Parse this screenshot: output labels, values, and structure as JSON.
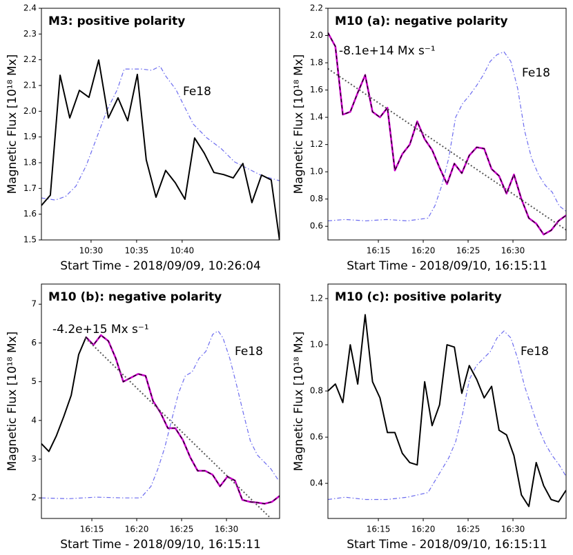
{
  "chart_data": [
    {
      "type": "line",
      "title": "M3: positive polarity",
      "ylabel": "Magnetic Flux [10¹⁸ Mx]",
      "xlabel": "Start Time - 2018/09/09, 10:26:04",
      "xlim": [
        624.55,
        650.7
      ],
      "xticks": [
        {
          "value": 630,
          "label": "10:30"
        },
        {
          "value": 635,
          "label": "10:35"
        },
        {
          "value": 640,
          "label": "10:40"
        }
      ],
      "ylim": [
        1.5,
        2.4
      ],
      "yticks": [
        1.5,
        1.6,
        1.7,
        1.8,
        1.9,
        {
          "value": 2,
          "label": "2.0"
        },
        2.1,
        2.2,
        2.3,
        2.4
      ],
      "series": [
        {
          "name": "Fe18",
          "color": "#6b6bef",
          "style": "dashdot",
          "x": [
            624.55,
            626.07,
            627.2,
            628.34,
            629.47,
            630.61,
            631.75,
            632.88,
            633.64,
            634.4,
            635.53,
            636.67,
            637.58,
            638.19,
            639.32,
            640.08,
            641.22,
            642.73,
            644.25,
            645.76,
            647.27,
            648.79,
            650.69
          ],
          "values": [
            1.663,
            1.655,
            1.669,
            1.709,
            1.789,
            1.896,
            2.004,
            2.084,
            2.164,
            2.164,
            2.164,
            2.159,
            2.175,
            2.137,
            2.084,
            2.03,
            1.95,
            1.896,
            1.856,
            1.803,
            1.776,
            1.749,
            1.73
          ]
        },
        {
          "color": "#000000",
          "style": "solid",
          "x": [
            624.55,
            625.53,
            626.6,
            627.66,
            628.72,
            629.77,
            630.84,
            631.9,
            632.96,
            634.02,
            635.08,
            636.06,
            637.13,
            638.19,
            639.25,
            640.31,
            641.37,
            642.43,
            643.49,
            644.55,
            645.61,
            646.67,
            647.66,
            648.72,
            649.78,
            650.69
          ],
          "values": [
            1.634,
            1.674,
            2.14,
            1.974,
            2.081,
            2.054,
            2.199,
            1.974,
            2.052,
            1.963,
            2.143,
            1.811,
            1.666,
            1.77,
            1.722,
            1.658,
            1.896,
            1.837,
            1.762,
            1.754,
            1.741,
            1.797,
            1.645,
            1.752,
            1.733,
            1.5
          ]
        }
      ]
    },
    {
      "type": "line",
      "title": "M10 (a): negative polarity",
      "ylabel": "Magnetic Flux [10¹⁸ Mx]",
      "xlabel": "Start Time - 2018/09/10, 16:15:11",
      "annotation": "-8.1e+14 Mx s⁻¹",
      "xlim": [
        969.38,
        995.92
      ],
      "xticks": [
        {
          "value": 975,
          "label": "16:15"
        },
        {
          "value": 980,
          "label": "16:20"
        },
        {
          "value": 985,
          "label": "16:25"
        },
        {
          "value": 990,
          "label": "16:30"
        }
      ],
      "ylim": [
        0.5,
        2.2
      ],
      "yticks": [
        0.6,
        0.8,
        {
          "value": 1,
          "label": "1.0"
        },
        1.2,
        1.4,
        1.6,
        1.8,
        {
          "value": 2,
          "label": "2.0"
        },
        2.2
      ],
      "series": [
        {
          "name": "Fe18",
          "color": "#6b6bef",
          "style": "dashdot",
          "x": [
            969.38,
            971.3,
            973.61,
            975.92,
            978.23,
            980.53,
            981.3,
            982.07,
            982.84,
            983.61,
            984.38,
            985.15,
            985.92,
            986.69,
            987.46,
            988.23,
            989.0,
            989.76,
            990.53,
            991.3,
            992.07,
            992.84,
            993.61,
            994.38,
            995.15,
            995.92
          ],
          "values": [
            0.64,
            0.65,
            0.64,
            0.65,
            0.64,
            0.66,
            0.75,
            0.9,
            1.1,
            1.4,
            1.5,
            1.56,
            1.63,
            1.71,
            1.81,
            1.86,
            1.88,
            1.81,
            1.61,
            1.3,
            1.1,
            0.98,
            0.9,
            0.85,
            0.75,
            0.71
          ]
        },
        {
          "color": "#000000",
          "style": "solid",
          "x": [
            969.38,
            970.21,
            971.04,
            971.87,
            972.7,
            973.53,
            974.35,
            975.18,
            976.01,
            976.84,
            977.67,
            978.5,
            979.33,
            980.16,
            980.99,
            981.82,
            982.65,
            983.47,
            984.3,
            985.13,
            985.96,
            986.79,
            987.62,
            988.45,
            989.28,
            990.11,
            990.94,
            991.77,
            992.59,
            993.42,
            994.25,
            995.08,
            995.91
          ],
          "values": [
            2.02,
            1.92,
            1.42,
            1.44,
            1.58,
            1.71,
            1.44,
            1.4,
            1.47,
            1.01,
            1.13,
            1.2,
            1.37,
            1.24,
            1.16,
            1.03,
            0.91,
            1.06,
            0.99,
            1.12,
            1.18,
            1.17,
            1.02,
            0.97,
            0.84,
            0.98,
            0.8,
            0.66,
            0.62,
            0.54,
            0.57,
            0.64,
            0.68
          ]
        },
        {
          "color": "#cc00cc",
          "style": "highlight",
          "x": [
            969.38,
            970.21,
            971.04,
            971.87,
            972.7,
            973.53,
            974.35,
            975.18,
            976.01,
            976.84,
            977.67,
            978.5,
            979.33,
            980.16,
            980.99,
            981.82,
            982.65,
            983.47,
            984.3,
            985.13,
            985.96,
            986.79,
            987.62,
            988.45,
            989.28,
            990.11,
            990.94,
            991.77,
            992.59,
            993.42,
            994.25,
            995.08,
            995.91
          ],
          "values": [
            2.02,
            1.92,
            1.42,
            1.44,
            1.58,
            1.71,
            1.44,
            1.4,
            1.47,
            1.01,
            1.13,
            1.2,
            1.37,
            1.24,
            1.16,
            1.03,
            0.91,
            1.06,
            0.99,
            1.12,
            1.18,
            1.17,
            1.02,
            0.97,
            0.84,
            0.98,
            0.8,
            0.66,
            0.62,
            0.54,
            0.57,
            0.64,
            0.68
          ]
        },
        {
          "color": "#555555",
          "style": "dotted",
          "x": [
            969.38,
            995.91
          ],
          "values": [
            1.757,
            0.574
          ]
        }
      ]
    },
    {
      "type": "line",
      "title": "M10 (b): negative polarity",
      "ylabel": "Magnetic Flux [10¹⁸ Mx]",
      "xlabel": "Start Time - 2018/09/10, 16:15:11",
      "annotation": "-4.2e+15 Mx s⁻¹",
      "xlim": [
        969.38,
        995.92
      ],
      "xticks": [
        {
          "value": 975,
          "label": "16:15"
        },
        {
          "value": 980,
          "label": "16:20"
        },
        {
          "value": 985,
          "label": "16:25"
        },
        {
          "value": 990,
          "label": "16:30"
        }
      ],
      "ylim": [
        1.47,
        7.52
      ],
      "yticks": [
        2,
        3,
        4,
        5,
        6,
        7
      ],
      "series": [
        {
          "name": "Fe18",
          "color": "#6b6bef",
          "style": "dashdot",
          "x": [
            969.38,
            972.43,
            975.49,
            978.54,
            980.45,
            981.59,
            982.36,
            983.12,
            983.88,
            984.65,
            985.41,
            986.17,
            986.94,
            987.7,
            988.46,
            989.07,
            989.61,
            990.37,
            991.14,
            991.9,
            992.66,
            993.43,
            994.19,
            994.95,
            995.72
          ],
          "values": [
            2.0,
            1.98,
            2.02,
            2.0,
            2.0,
            2.3,
            2.75,
            3.3,
            4.0,
            4.7,
            5.15,
            5.25,
            5.6,
            5.78,
            6.22,
            6.31,
            6.13,
            5.6,
            4.9,
            4.17,
            3.47,
            3.11,
            2.93,
            2.75,
            2.48
          ]
        },
        {
          "color": "#000000",
          "style": "solid",
          "x": [
            969.38,
            970.21,
            971.04,
            971.87,
            972.7,
            973.53,
            974.35,
            975.18,
            976.01,
            976.84,
            977.67,
            978.5,
            979.33,
            980.16,
            980.99,
            981.82,
            982.65,
            983.47,
            984.3,
            985.13,
            985.96,
            986.79,
            987.62,
            988.45,
            989.28,
            990.11,
            990.94,
            991.77,
            992.59,
            993.42,
            994.25,
            995.08,
            995.91
          ],
          "values": [
            3.4,
            3.2,
            3.6,
            4.1,
            4.65,
            5.7,
            6.15,
            5.95,
            6.2,
            6.05,
            5.6,
            5.0,
            5.1,
            5.2,
            5.15,
            4.5,
            4.2,
            3.8,
            3.8,
            3.5,
            3.05,
            2.7,
            2.7,
            2.6,
            2.3,
            2.55,
            2.45,
            1.95,
            1.9,
            1.88,
            1.85,
            1.9,
            2.05
          ]
        },
        {
          "color": "#cc00cc",
          "style": "highlight",
          "x": [
            969.38,
            970.21,
            971.04,
            971.87,
            972.7,
            973.53,
            974.35,
            975.18,
            976.01,
            976.84,
            977.67,
            978.5,
            979.33,
            980.16,
            980.99,
            981.82,
            982.65,
            983.47,
            984.3,
            985.13,
            985.96,
            986.79,
            987.62,
            988.45,
            989.28,
            990.11,
            990.94,
            991.77,
            992.59,
            993.42,
            994.25,
            995.08,
            995.91
          ],
          "values": [
            null,
            null,
            null,
            null,
            null,
            null,
            6.15,
            5.95,
            6.2,
            6.05,
            5.6,
            5.0,
            5.1,
            5.2,
            5.15,
            4.5,
            4.2,
            3.8,
            3.8,
            3.5,
            3.05,
            2.7,
            2.7,
            2.6,
            2.3,
            2.55,
            2.45,
            1.95,
            1.9,
            1.88,
            1.85,
            1.9,
            2.05
          ]
        },
        {
          "color": "#555555",
          "style": "dotted",
          "x": [
            974.27,
            994.95
          ],
          "values": [
            6.13,
            1.47
          ]
        }
      ]
    },
    {
      "type": "line",
      "title": "M10 (c): positive polarity",
      "ylabel": "Magnetic Flux [10¹⁸ Mx]",
      "xlabel": "Start Time - 2018/09/10, 16:15:11",
      "xlim": [
        969.38,
        995.92
      ],
      "xticks": [
        {
          "value": 975,
          "label": "16:15"
        },
        {
          "value": 980,
          "label": "16:20"
        },
        {
          "value": 985,
          "label": "16:25"
        },
        {
          "value": 990,
          "label": "16:30"
        }
      ],
      "ylim": [
        0.248,
        1.263
      ],
      "yticks": [
        0.4,
        0.6,
        0.8,
        {
          "value": 1,
          "label": "1.0"
        },
        1.2
      ],
      "series": [
        {
          "name": "Fe18",
          "color": "#6b6bef",
          "style": "dashdot",
          "x": [
            969.38,
            971.3,
            973.61,
            975.92,
            978.23,
            980.53,
            982.07,
            982.84,
            983.61,
            984.38,
            985.15,
            985.92,
            986.69,
            987.46,
            988.23,
            989.0,
            989.76,
            990.53,
            991.3,
            992.07,
            992.84,
            993.61,
            994.38,
            995.15,
            995.92
          ],
          "values": [
            0.33,
            0.34,
            0.33,
            0.33,
            0.34,
            0.36,
            0.46,
            0.51,
            0.58,
            0.7,
            0.85,
            0.91,
            0.94,
            0.97,
            1.03,
            1.06,
            1.03,
            0.94,
            0.82,
            0.73,
            0.64,
            0.57,
            0.52,
            0.48,
            0.43
          ]
        },
        {
          "color": "#000000",
          "style": "solid",
          "x": [
            969.38,
            970.21,
            971.04,
            971.87,
            972.7,
            973.53,
            974.35,
            975.18,
            976.01,
            976.84,
            977.67,
            978.5,
            979.33,
            980.16,
            980.99,
            981.82,
            982.65,
            983.47,
            984.3,
            985.13,
            985.96,
            986.79,
            987.62,
            988.45,
            989.28,
            990.11,
            990.94,
            991.77,
            992.59,
            993.42,
            994.25,
            995.08,
            995.91
          ],
          "values": [
            0.8,
            0.83,
            0.75,
            1.0,
            0.83,
            1.13,
            0.84,
            0.77,
            0.62,
            0.62,
            0.53,
            0.49,
            0.48,
            0.84,
            0.65,
            0.74,
            1.0,
            0.99,
            0.79,
            0.91,
            0.85,
            0.77,
            0.82,
            0.63,
            0.61,
            0.52,
            0.35,
            0.3,
            0.49,
            0.39,
            0.33,
            0.32,
            0.37
          ]
        }
      ]
    }
  ]
}
